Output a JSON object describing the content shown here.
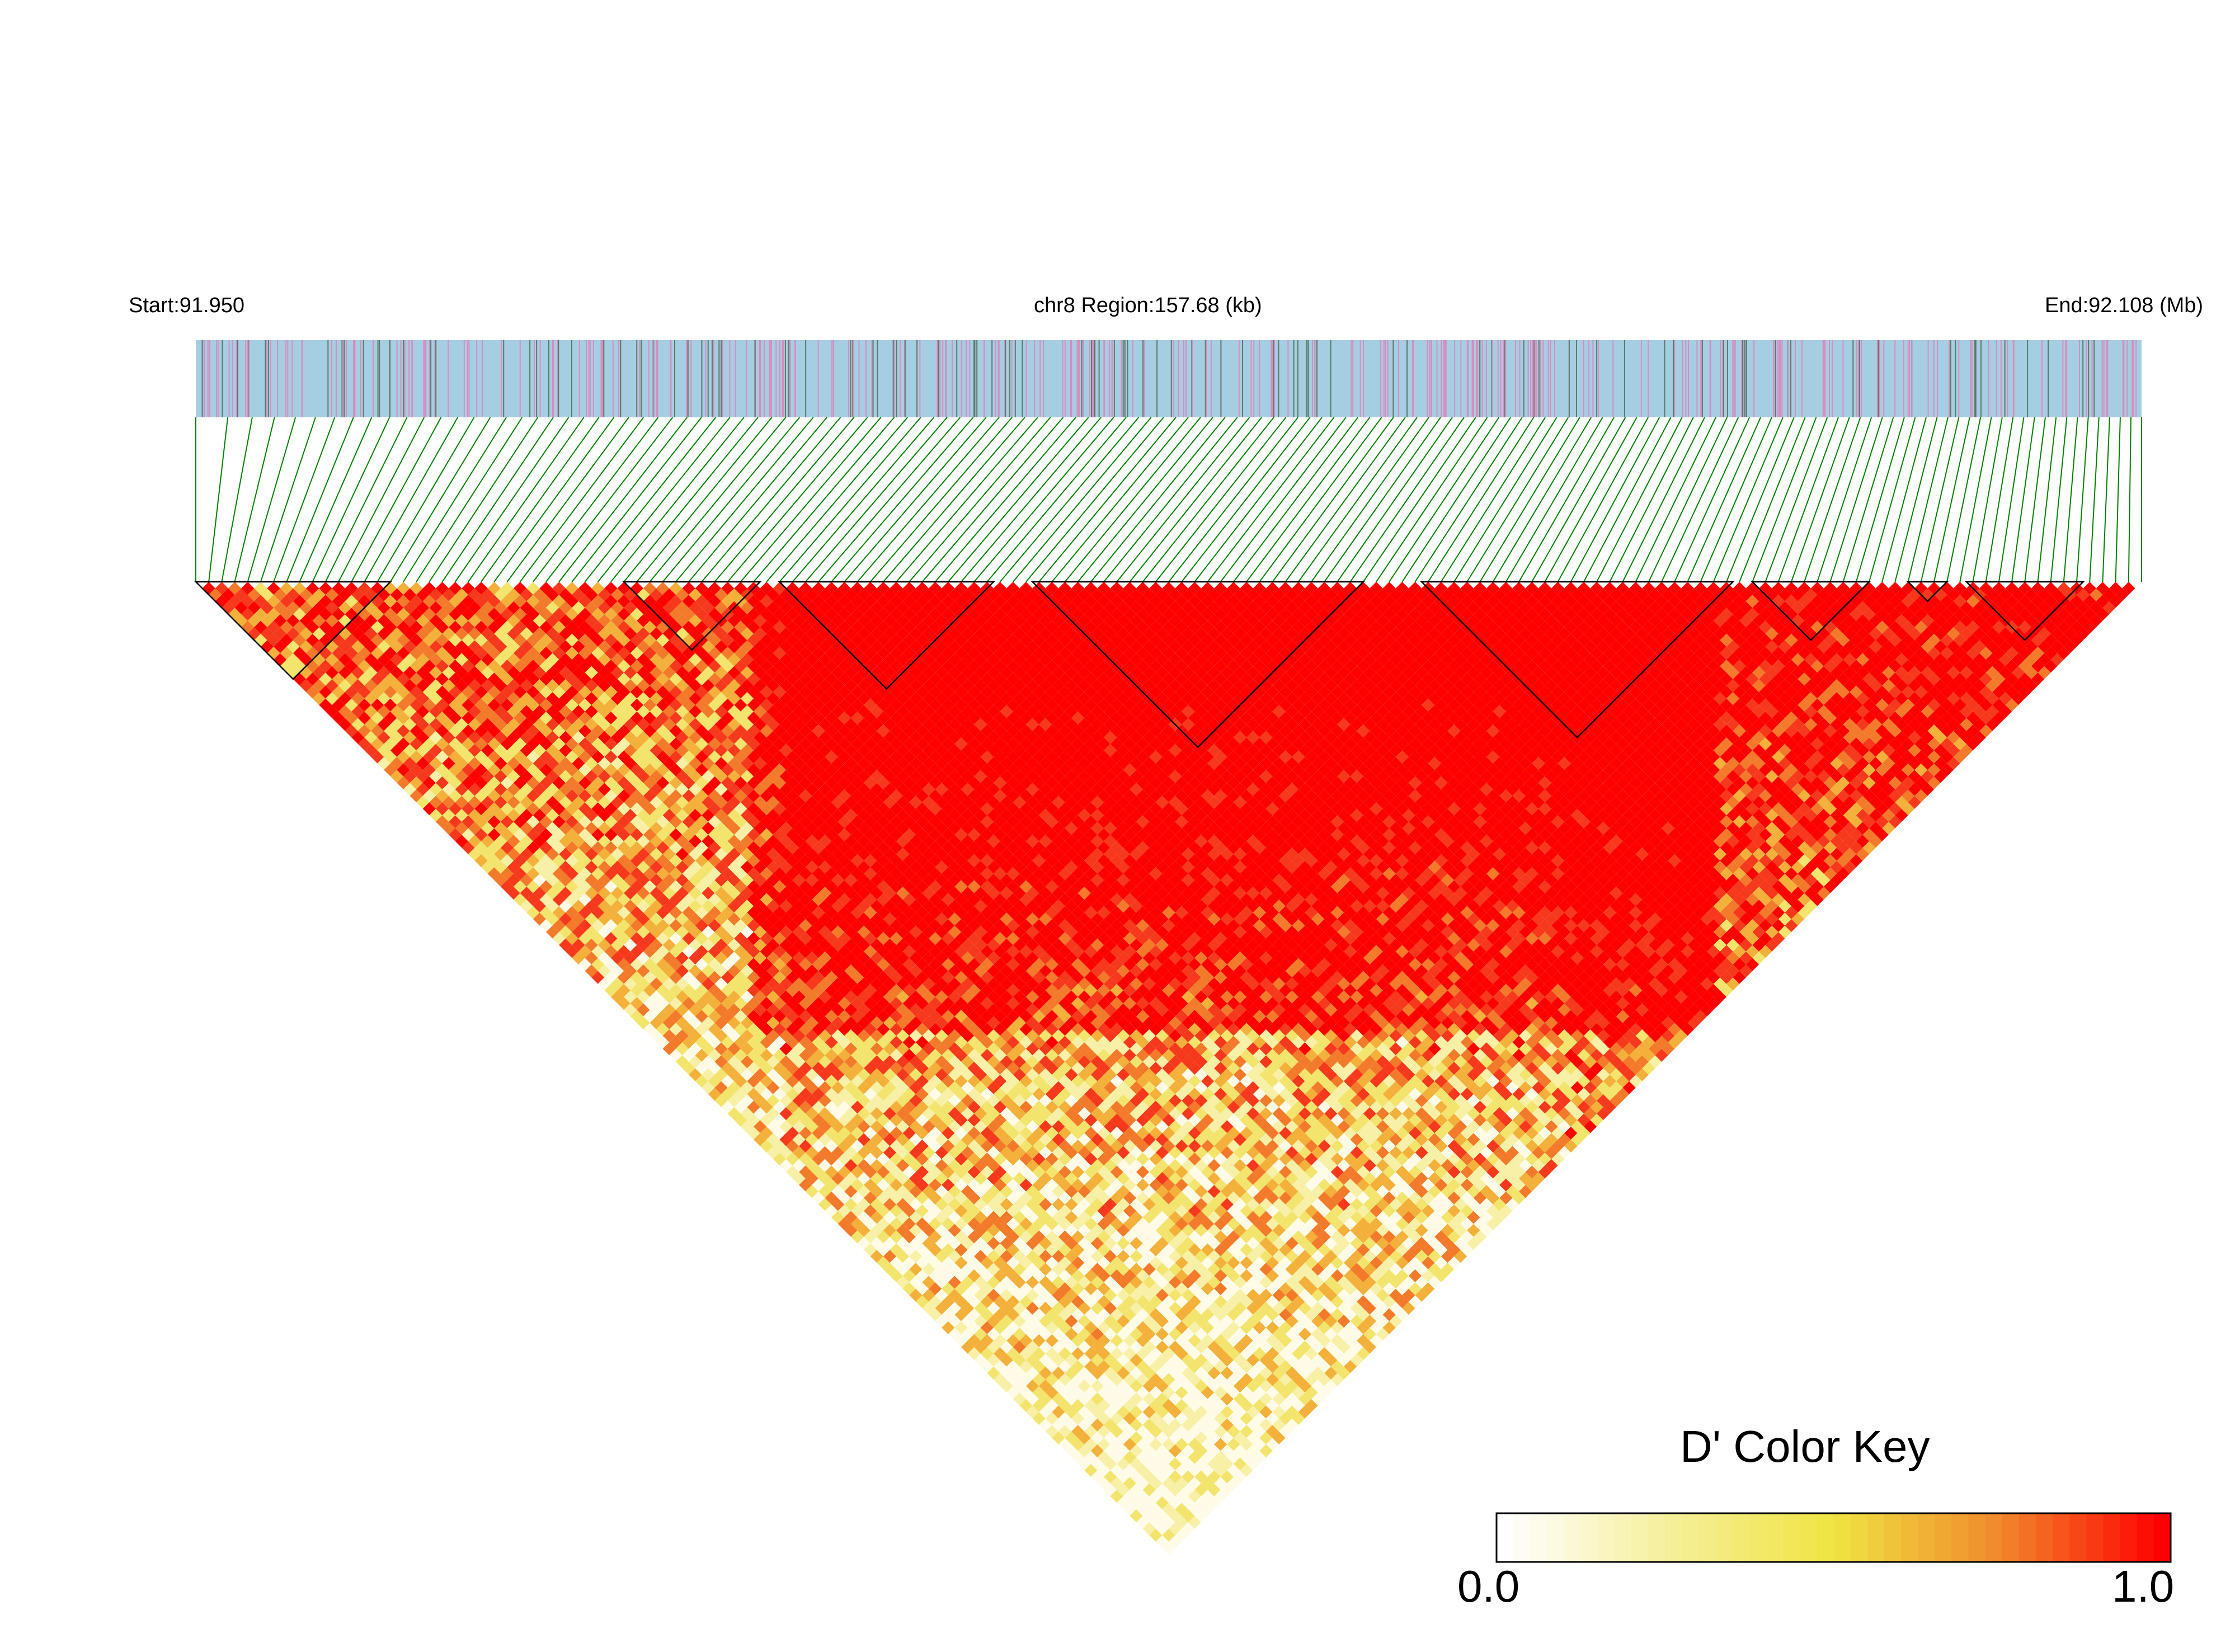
{
  "header": {
    "start_label": "Start:91.950",
    "region_label": "chr8 Region:157.68 (kb)",
    "end_label": "End:92.108 (Mb)"
  },
  "colors": {
    "track_background": "#a6cee3",
    "snp_tick_primary": "#d98cbf",
    "snp_tick_secondary": "#5a7a66",
    "connector_line": "#008000",
    "block_outline": "#000000",
    "high_ld": "#ff0000",
    "mid_ld": "#f0e442",
    "low_ld": "#ffffff"
  },
  "color_key": {
    "title": "D' Color Key",
    "min_label": "0.0",
    "max_label": "1.0",
    "min_value": 0.0,
    "max_value": 1.0,
    "stops": [
      "#ffffff",
      "#f5ef9a",
      "#f0e442",
      "#f08a2c",
      "#ff0000"
    ]
  },
  "chart_data": {
    "type": "heatmap",
    "description": "",
    "chromosome": "chr8",
    "region_start_mb": 91.95,
    "region_end_mb": 92.108,
    "region_size_kb": 157.68,
    "value_name": "D'",
    "value_range": [
      0.0,
      1.0
    ]
  }
}
